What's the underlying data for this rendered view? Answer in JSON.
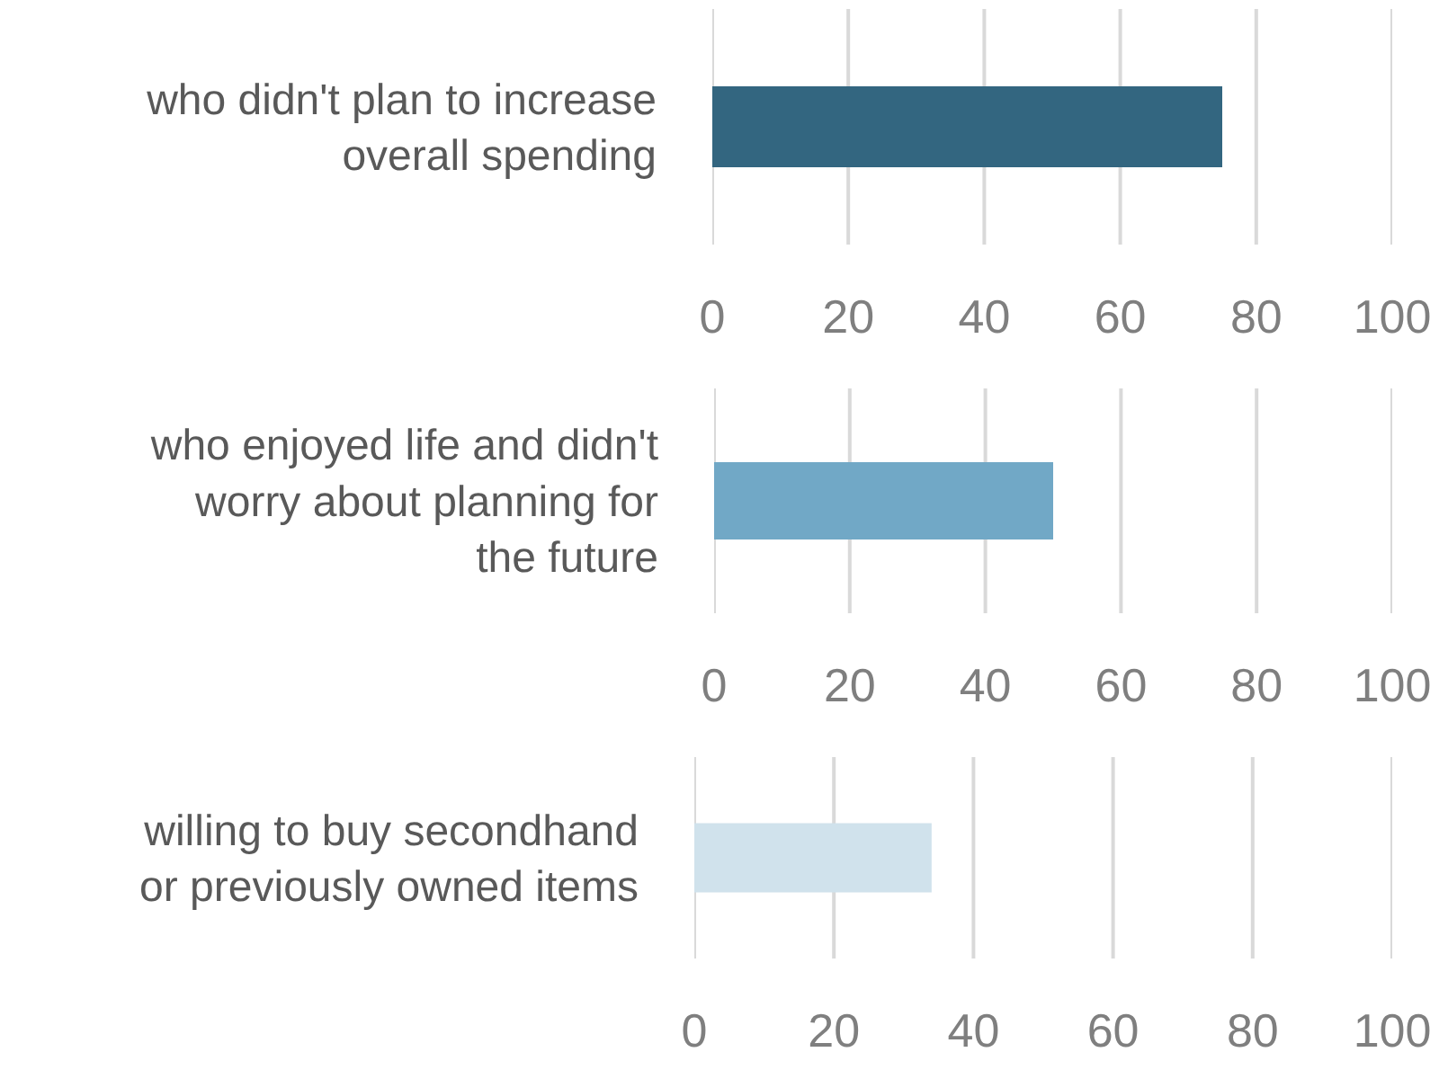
{
  "chart_data": [
    {
      "type": "bar",
      "orientation": "horizontal",
      "categories": [
        "who didn't plan to increase overall spending"
      ],
      "values": [
        75
      ],
      "color": "#336680",
      "xlim": [
        0,
        100
      ],
      "xticks": [
        0,
        20,
        40,
        60,
        80,
        100
      ],
      "grid": "x"
    },
    {
      "type": "bar",
      "orientation": "horizontal",
      "categories": [
        "who enjoyed life and didn't worry about planning for the future"
      ],
      "values": [
        50
      ],
      "color": "#71a8c6",
      "xlim": [
        0,
        100
      ],
      "xticks": [
        0,
        20,
        40,
        60,
        80,
        100
      ],
      "grid": "x"
    },
    {
      "type": "bar",
      "orientation": "horizontal",
      "categories": [
        "willing to buy secondhand or previously owned items"
      ],
      "values": [
        34
      ],
      "color": "#d0e2ec",
      "xlim": [
        0,
        100
      ],
      "xticks": [
        0,
        20,
        40,
        60,
        80,
        100
      ],
      "grid": "x"
    }
  ]
}
